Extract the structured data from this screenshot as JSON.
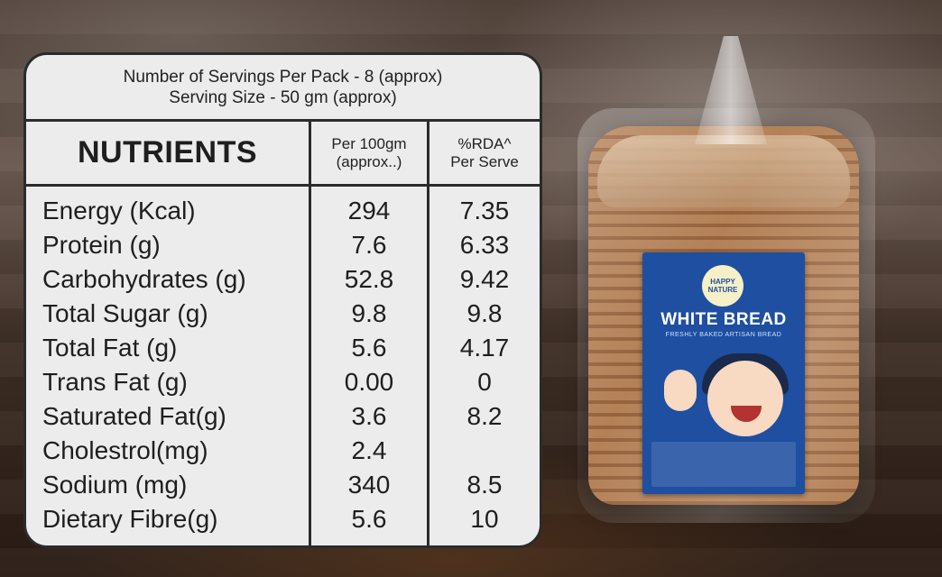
{
  "header": {
    "servings": "Number of Servings Per Pack - 8 (approx)",
    "serving_size": "Serving Size - 50 gm (approx)"
  },
  "columns": {
    "nutrients": "NUTRIENTS",
    "per100_line1": "Per 100gm",
    "per100_line2": "(approx..)",
    "rda_line1": "%RDA^",
    "rda_line2": "Per Serve"
  },
  "rows": [
    {
      "name": "Energy (Kcal)",
      "per100": "294",
      "rda": "7.35"
    },
    {
      "name": "Protein (g)",
      "per100": "7.6",
      "rda": "6.33"
    },
    {
      "name": "Carbohydrates (g)",
      "per100": "52.8",
      "rda": "9.42"
    },
    {
      "name": "Total Sugar (g)",
      "per100": "9.8",
      "rda": "9.8"
    },
    {
      "name": "Total Fat (g)",
      "per100": "5.6",
      "rda": "4.17"
    },
    {
      "name": "Trans Fat (g)",
      "per100": "0.00",
      "rda": "0"
    },
    {
      "name": "Saturated Fat(g)",
      "per100": "3.6",
      "rda": "8.2"
    },
    {
      "name": "Cholestrol(mg)",
      "per100": "2.4",
      "rda": ""
    },
    {
      "name": "Sodium (mg)",
      "per100": "340",
      "rda": "8.5"
    },
    {
      "name": "Dietary Fibre(g)",
      "per100": "5.6",
      "rda": "10"
    }
  ],
  "product": {
    "brand": "HAPPY NATURE",
    "name": "WHITE BREAD",
    "tagline": "FRESHLY BAKED ARTISAN BREAD"
  },
  "colors": {
    "card_bg": "#ececec",
    "border": "#2b2b2b",
    "label_blue": "#1f4fa0"
  }
}
